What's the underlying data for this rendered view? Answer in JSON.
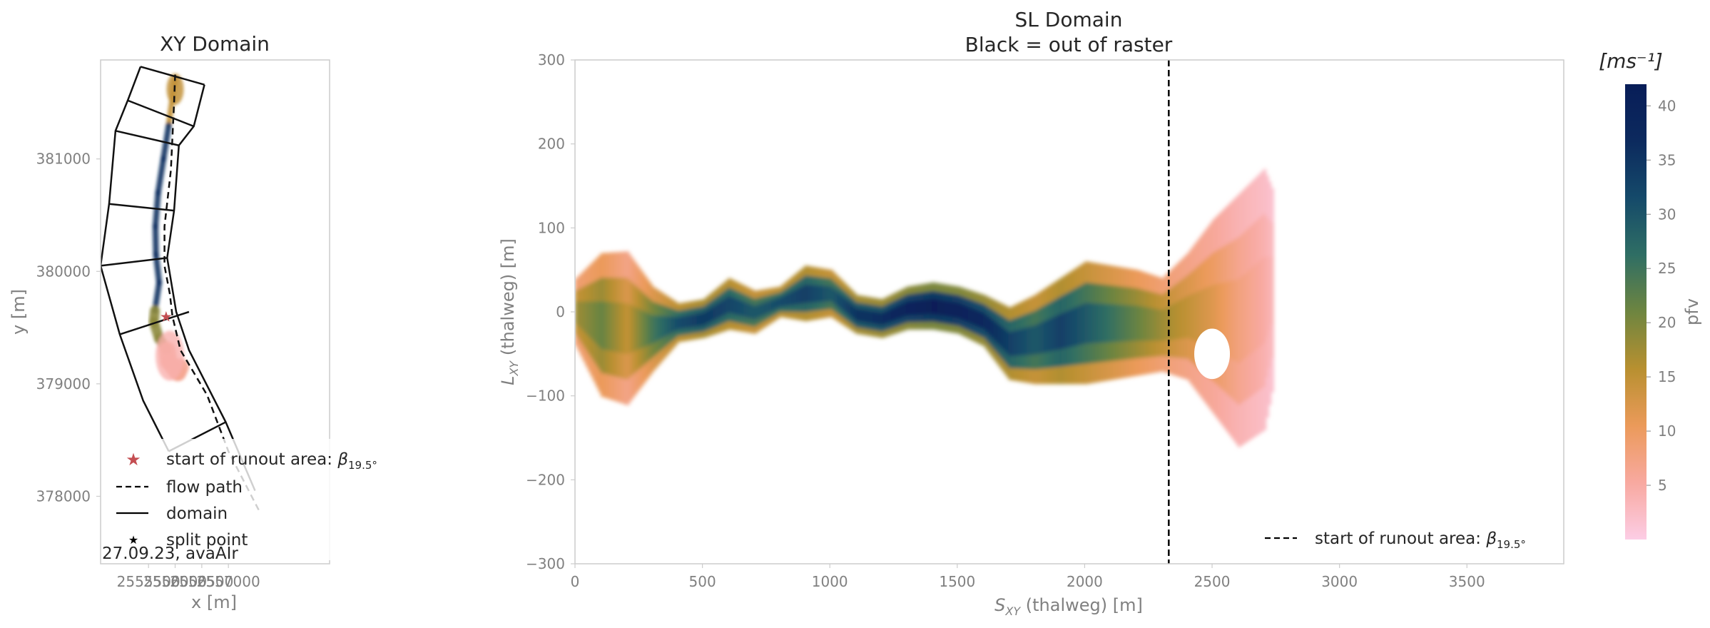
{
  "chart_data": [
    {
      "type": "line",
      "title": "XY Domain",
      "xlabel": "x [m]",
      "ylabel": "y [m]",
      "xlim": [
        2554600,
        2558900
      ],
      "ylim": [
        377400,
        381880
      ],
      "xticks": [
        2555500,
        2556000,
        2556500,
        2557000
      ],
      "xtick_labels": [
        "2555500",
        "2556000",
        "2556500",
        "2557000"
      ],
      "yticks": [
        378000,
        379000,
        380000,
        381000
      ],
      "ytick_labels": [
        "378000",
        "379000",
        "380000",
        "381000"
      ],
      "grid": false,
      "legend_position": "lower-left",
      "legend": [
        {
          "name": "start of runout area: ",
          "math": "β",
          "sub": "19.5°",
          "marker": "star",
          "color": "#c44e52"
        },
        {
          "name": "flow path",
          "marker": "dashed",
          "color": "#000000"
        },
        {
          "name": "domain",
          "marker": "solid",
          "color": "#000000"
        },
        {
          "name": "split point",
          "marker": "small-star",
          "color": "#000000"
        }
      ],
      "annotation": "27.09.23, avaAIr",
      "series": [
        {
          "name": "flow path",
          "style": "dashed",
          "x": [
            2556000,
            2555980,
            2555950,
            2555920,
            2555800,
            2555800,
            2555900,
            2555950,
            2556100,
            2556600,
            2557000,
            2557600
          ],
          "y": [
            381750,
            381500,
            381200,
            380900,
            380400,
            380050,
            379800,
            379600,
            379300,
            378900,
            378400,
            377850
          ]
        },
        {
          "name": "domain left boundary",
          "style": "solid",
          "x": [
            2555350,
            2555110,
            2554880,
            2554760,
            2554600,
            2554960,
            2555400,
            2555880
          ],
          "y": [
            381820,
            381520,
            381250,
            380600,
            380050,
            379440,
            378850,
            378400
          ]
        },
        {
          "name": "domain right boundary",
          "style": "solid",
          "x": [
            2556550,
            2556350,
            2556070,
            2555980,
            2555850,
            2556020,
            2556260,
            2556950,
            2557500
          ],
          "y": [
            381660,
            381290,
            381120,
            380540,
            380120,
            379640,
            379300,
            378660,
            378050
          ]
        },
        {
          "name": "domain cross line",
          "style": "solid",
          "x": [
            2555350,
            2556550
          ],
          "y": [
            381820,
            381660
          ]
        },
        {
          "name": "domain cross line",
          "style": "solid",
          "x": [
            2555110,
            2556350
          ],
          "y": [
            381520,
            381290
          ]
        },
        {
          "name": "domain cross line",
          "style": "solid",
          "x": [
            2554880,
            2556070
          ],
          "y": [
            381250,
            381120
          ]
        },
        {
          "name": "domain cross line",
          "style": "solid",
          "x": [
            2554760,
            2555980
          ],
          "y": [
            380600,
            380540
          ]
        },
        {
          "name": "domain cross line",
          "style": "solid",
          "x": [
            2554600,
            2555850
          ],
          "y": [
            380050,
            380120
          ]
        },
        {
          "name": "domain cross line",
          "style": "solid",
          "x": [
            2554960,
            2556260
          ],
          "y": [
            379440,
            379640
          ]
        },
        {
          "name": "domain cross line",
          "style": "solid",
          "x": [
            2555880,
            2556950
          ],
          "y": [
            378400,
            378660
          ]
        },
        {
          "name": "pfv field",
          "style": "field",
          "x": [
            2556000,
            2555950,
            2555880,
            2555780,
            2555680,
            2555630,
            2555640,
            2555700,
            2555620,
            2555600,
            2555700,
            2555850,
            2555880,
            2556050,
            2556100
          ],
          "y": [
            381700,
            381550,
            381300,
            381000,
            380700,
            380400,
            380150,
            379900,
            379650,
            379550,
            379400,
            379300,
            379200,
            379100,
            379150
          ]
        }
      ]
    },
    {
      "type": "heatmap",
      "title": "SL Domain",
      "subtitle": "Black = out of raster",
      "xlabel": "S",
      "xlabel_sub": "XY",
      "xlabel_rest": " (thalweg) [m]",
      "ylabel": "L",
      "ylabel_sub": "XY",
      "ylabel_rest": " (thalweg) [m]",
      "xlim": [
        0,
        3880
      ],
      "ylim": [
        -300,
        300
      ],
      "xticks": [
        0,
        500,
        1000,
        1500,
        2000,
        2500,
        3000,
        3500
      ],
      "xtick_labels": [
        "0",
        "500",
        "1000",
        "1500",
        "2000",
        "2500",
        "3000",
        "3500"
      ],
      "yticks": [
        -300,
        -200,
        -100,
        0,
        100,
        200,
        300
      ],
      "ytick_labels": [
        "−300",
        "−200",
        "−100",
        "0",
        "100",
        "200",
        "300"
      ],
      "grid": false,
      "legend_position": "lower-right",
      "legend": [
        {
          "name": "start of runout area: ",
          "math": "β",
          "sub": "19.5°",
          "marker": "dashed",
          "color": "#000000"
        }
      ],
      "vline_x": 2330,
      "colorbar": {
        "label": "pfv",
        "unit_label": "[ms⁻¹]",
        "min": 0,
        "max": 42,
        "ticks": [
          5,
          10,
          15,
          20,
          25,
          30,
          35,
          40
        ],
        "tick_labels": [
          "5",
          "10",
          "15",
          "20",
          "25",
          "30",
          "35",
          "40"
        ],
        "colors": [
          "#fccde5",
          "#f8a9a0",
          "#eb9a5a",
          "#b89030",
          "#6e8540",
          "#2f6e64",
          "#154a6a",
          "#0c2a5e",
          "#081d58"
        ]
      },
      "field_profile": {
        "s": [
          0,
          100,
          200,
          300,
          400,
          500,
          600,
          700,
          800,
          900,
          1000,
          1100,
          1200,
          1300,
          1400,
          1500,
          1600,
          1700,
          1800,
          1900,
          2000,
          2100,
          2200,
          2300,
          2400,
          2500,
          2600,
          2700,
          2740
        ],
        "upper": [
          40,
          70,
          72,
          30,
          10,
          15,
          40,
          25,
          30,
          55,
          50,
          20,
          15,
          30,
          35,
          30,
          20,
          5,
          20,
          40,
          60,
          55,
          50,
          40,
          70,
          110,
          140,
          170,
          140
        ],
        "lower": [
          -40,
          -100,
          -110,
          -70,
          -35,
          -30,
          -20,
          -25,
          -5,
          -10,
          -5,
          -25,
          -30,
          -20,
          -20,
          -25,
          -40,
          -80,
          -85,
          -85,
          -85,
          -80,
          -75,
          -70,
          -80,
          -120,
          -160,
          -140,
          -80
        ],
        "speed": [
          18,
          22,
          15,
          25,
          32,
          35,
          33,
          30,
          32,
          34,
          30,
          36,
          37,
          40,
          42,
          41,
          38,
          34,
          30,
          34,
          30,
          26,
          22,
          18,
          15,
          12,
          8,
          5,
          3
        ]
      }
    }
  ]
}
